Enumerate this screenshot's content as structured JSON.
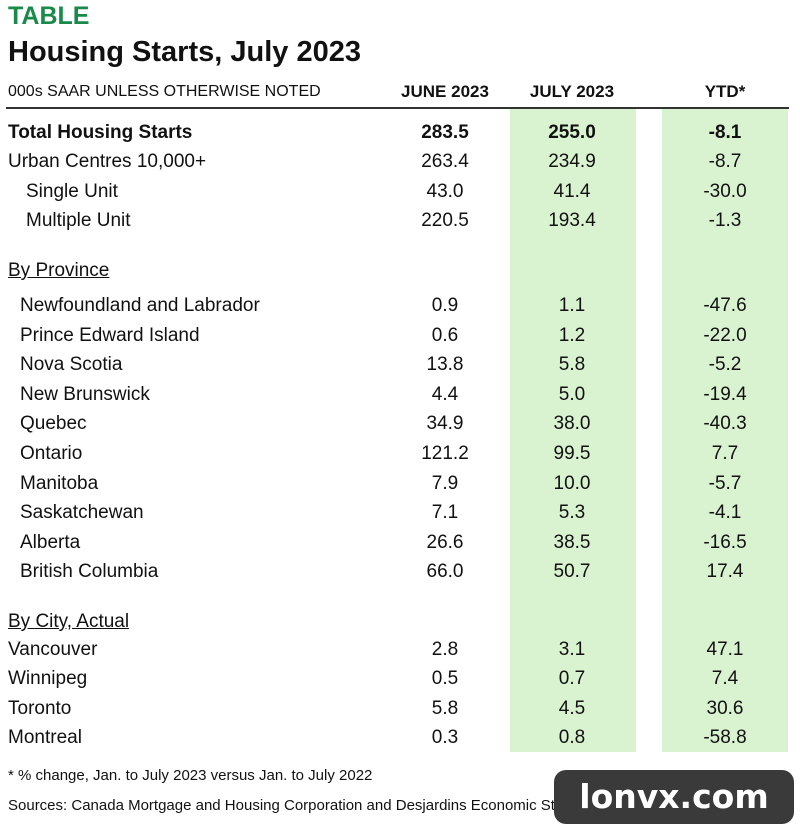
{
  "header": {
    "kicker": "TABLE",
    "title": "Housing Starts, July 2023"
  },
  "table": {
    "columns": [
      "000s SAAR UNLESS OTHERWISE NOTED",
      "JUNE 2023",
      "JULY 2023",
      "YTD*"
    ],
    "rows": [
      [
        "Total Housing Starts",
        "283.5",
        "255.0",
        "-8.1"
      ],
      [
        "Urban Centres 10,000+",
        "263.4",
        "234.9",
        "-8.7"
      ],
      [
        "Single Unit",
        "43.0",
        "41.4",
        "-30.0"
      ],
      [
        "Multiple Unit",
        "220.5",
        "193.4",
        "-1.3"
      ]
    ],
    "sections": [
      {
        "heading": "By Province",
        "rows": [
          [
            "Newfoundland and Labrador",
            "0.9",
            "1.1",
            "-47.6"
          ],
          [
            "Prince Edward Island",
            "0.6",
            "1.2",
            "-22.0"
          ],
          [
            "Nova Scotia",
            "13.8",
            "5.8",
            "-5.2"
          ],
          [
            "New Brunswick",
            "4.4",
            "5.0",
            "-19.4"
          ],
          [
            "Quebec",
            "34.9",
            "38.0",
            "-40.3"
          ],
          [
            "Ontario",
            "121.2",
            "99.5",
            "7.7"
          ],
          [
            "Manitoba",
            "7.9",
            "10.0",
            "-5.7"
          ],
          [
            "Saskatchewan",
            "7.1",
            "5.3",
            "-4.1"
          ],
          [
            "Alberta",
            "26.6",
            "38.5",
            "-16.5"
          ],
          [
            "British Columbia",
            "66.0",
            "50.7",
            "17.4"
          ]
        ]
      },
      {
        "heading": "By City, Actual",
        "rows": [
          [
            "Vancouver",
            "2.8",
            "3.1",
            "47.1"
          ],
          [
            "Winnipeg",
            "0.5",
            "0.7",
            "7.4"
          ],
          [
            "Toronto",
            "5.8",
            "4.5",
            "30.6"
          ],
          [
            "Montreal",
            "0.3",
            "0.8",
            "-58.8"
          ]
        ]
      }
    ]
  },
  "footnotes": [
    "* % change, Jan. to July 2023 versus Jan. to July 2022",
    "Sources: Canada Mortgage and Housing Corporation and Desjardins Economic St"
  ],
  "watermark": "lonvx.com"
}
